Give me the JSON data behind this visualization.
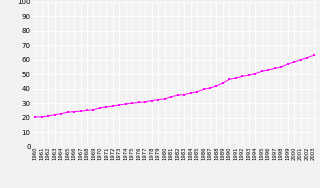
{
  "years": [
    1960,
    1961,
    1962,
    1963,
    1964,
    1965,
    1966,
    1967,
    1968,
    1969,
    1970,
    1971,
    1972,
    1973,
    1974,
    1975,
    1976,
    1977,
    1978,
    1979,
    1980,
    1981,
    1982,
    1983,
    1984,
    1985,
    1986,
    1987,
    1988,
    1989,
    1990,
    1991,
    1992,
    1993,
    1994,
    1995,
    1996,
    1997,
    1998,
    1999,
    2000,
    2001,
    2002,
    2003
  ],
  "population": [
    20.5,
    20.6,
    21.2,
    22.0,
    22.8,
    23.8,
    24.2,
    24.5,
    25.0,
    25.5,
    26.8,
    27.5,
    28.0,
    28.8,
    29.5,
    30.0,
    30.5,
    31.0,
    31.8,
    32.5,
    33.0,
    34.5,
    35.5,
    36.0,
    37.0,
    38.0,
    39.5,
    40.5,
    42.0,
    44.0,
    46.5,
    47.5,
    48.5,
    49.5,
    50.5,
    52.0,
    53.0,
    54.0,
    55.0,
    57.0,
    58.5,
    60.0,
    61.5,
    63.0
  ],
  "line_color": "#ff00ff",
  "marker": "s",
  "marker_size": 1.8,
  "linewidth": 0.7,
  "ylim": [
    0,
    100
  ],
  "yticks": [
    0,
    10,
    20,
    30,
    40,
    50,
    60,
    70,
    80,
    90,
    100
  ],
  "background_color": "#f2f2f2",
  "grid_color": "#ffffff",
  "ytick_fontsize": 5.0,
  "xtick_fontsize": 3.8
}
